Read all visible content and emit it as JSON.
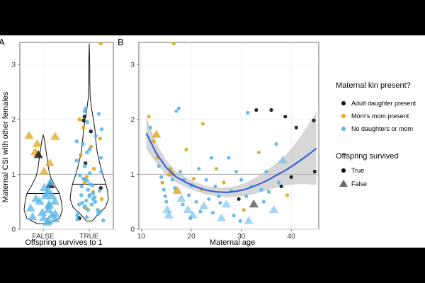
{
  "colors": {
    "adult_daughter": "#111111",
    "moms_mom": "#E0A419",
    "no_daughters": "#56B4E9",
    "false_marker": "#555555",
    "smooth_line": "#3A63D6",
    "ribbon": "#BDBDBD",
    "refline": "#AAAAAA"
  },
  "chart_data": [
    {
      "type": "violin",
      "panel_label": "A",
      "xlabel": "Offspring survives to 1",
      "ylabel": "Maternal CSI with other females",
      "categories": [
        "FALSE",
        "TRUE"
      ],
      "ylim": [
        0,
        3.4
      ],
      "yticks": [
        0,
        1,
        2,
        3
      ],
      "reference_line": 1,
      "grid": true,
      "points": {
        "FALSE": [
          {
            "y": 1.7,
            "g": "m"
          },
          {
            "y": 1.68,
            "g": "m"
          },
          {
            "y": 1.55,
            "g": "m"
          },
          {
            "y": 1.4,
            "g": "m"
          },
          {
            "y": 1.2,
            "g": "m"
          },
          {
            "y": 1.05,
            "g": "m"
          },
          {
            "y": 1.35,
            "g": "a"
          },
          {
            "y": 0.8,
            "g": "a"
          },
          {
            "y": 0.85,
            "g": "n"
          },
          {
            "y": 0.75,
            "g": "n"
          },
          {
            "y": 0.7,
            "g": "n"
          },
          {
            "y": 0.65,
            "g": "n"
          },
          {
            "y": 0.6,
            "g": "n"
          },
          {
            "y": 0.55,
            "g": "n"
          },
          {
            "y": 0.5,
            "g": "n"
          },
          {
            "y": 0.45,
            "g": "n"
          },
          {
            "y": 0.42,
            "g": "n"
          },
          {
            "y": 0.38,
            "g": "n"
          },
          {
            "y": 0.35,
            "g": "n"
          },
          {
            "y": 0.3,
            "g": "n"
          },
          {
            "y": 0.28,
            "g": "n"
          },
          {
            "y": 0.25,
            "g": "n"
          },
          {
            "y": 0.22,
            "g": "n"
          },
          {
            "y": 0.2,
            "g": "n"
          },
          {
            "y": 0.18,
            "g": "n"
          },
          {
            "y": 0.15,
            "g": "n"
          },
          {
            "y": 0.12,
            "g": "n"
          },
          {
            "y": 0.6,
            "g": "n"
          },
          {
            "y": 0.5,
            "g": "n"
          }
        ],
        "TRUE": [
          {
            "y": 3.38,
            "g": "m"
          },
          {
            "y": 2.2,
            "g": "n"
          },
          {
            "y": 2.15,
            "g": "n"
          },
          {
            "y": 2.1,
            "g": "n"
          },
          {
            "y": 2.05,
            "g": "a"
          },
          {
            "y": 2.0,
            "g": "m"
          },
          {
            "y": 1.98,
            "g": "a"
          },
          {
            "y": 1.95,
            "g": "n"
          },
          {
            "y": 1.85,
            "g": "m"
          },
          {
            "y": 1.82,
            "g": "n"
          },
          {
            "y": 1.78,
            "g": "a"
          },
          {
            "y": 1.7,
            "g": "n"
          },
          {
            "y": 1.65,
            "g": "m"
          },
          {
            "y": 1.6,
            "g": "n"
          },
          {
            "y": 1.55,
            "g": "n"
          },
          {
            "y": 1.5,
            "g": "m"
          },
          {
            "y": 1.45,
            "g": "n"
          },
          {
            "y": 1.4,
            "g": "n"
          },
          {
            "y": 1.35,
            "g": "m"
          },
          {
            "y": 1.3,
            "g": "n"
          },
          {
            "y": 1.25,
            "g": "n"
          },
          {
            "y": 1.2,
            "g": "a"
          },
          {
            "y": 1.15,
            "g": "n"
          },
          {
            "y": 1.1,
            "g": "m"
          },
          {
            "y": 1.05,
            "g": "n"
          },
          {
            "y": 1.02,
            "g": "n"
          },
          {
            "y": 0.98,
            "g": "n"
          },
          {
            "y": 0.95,
            "g": "m"
          },
          {
            "y": 0.92,
            "g": "n"
          },
          {
            "y": 0.9,
            "g": "n"
          },
          {
            "y": 0.88,
            "g": "n"
          },
          {
            "y": 0.85,
            "g": "m"
          },
          {
            "y": 0.82,
            "g": "n"
          },
          {
            "y": 0.8,
            "g": "n"
          },
          {
            "y": 0.78,
            "g": "n"
          },
          {
            "y": 0.75,
            "g": "a"
          },
          {
            "y": 0.72,
            "g": "n"
          },
          {
            "y": 0.7,
            "g": "n"
          },
          {
            "y": 0.68,
            "g": "m"
          },
          {
            "y": 0.65,
            "g": "n"
          },
          {
            "y": 0.62,
            "g": "n"
          },
          {
            "y": 0.6,
            "g": "n"
          },
          {
            "y": 0.58,
            "g": "n"
          },
          {
            "y": 0.55,
            "g": "m"
          },
          {
            "y": 0.52,
            "g": "n"
          },
          {
            "y": 0.5,
            "g": "n"
          },
          {
            "y": 0.48,
            "g": "n"
          },
          {
            "y": 0.45,
            "g": "n"
          },
          {
            "y": 0.42,
            "g": "n"
          },
          {
            "y": 0.4,
            "g": "n"
          },
          {
            "y": 0.38,
            "g": "m"
          },
          {
            "y": 0.35,
            "g": "n"
          },
          {
            "y": 0.32,
            "g": "n"
          },
          {
            "y": 0.3,
            "g": "n"
          },
          {
            "y": 0.28,
            "g": "n"
          },
          {
            "y": 0.25,
            "g": "n"
          },
          {
            "y": 0.22,
            "g": "n"
          },
          {
            "y": 0.2,
            "g": "a"
          },
          {
            "y": 0.18,
            "g": "n"
          },
          {
            "y": 0.16,
            "g": "n"
          },
          {
            "y": 0.62,
            "g": "n"
          },
          {
            "y": 0.55,
            "g": "n"
          },
          {
            "y": 0.45,
            "g": "n"
          },
          {
            "y": 0.35,
            "g": "n"
          }
        ]
      },
      "violin_density": {
        "FALSE": [
          [
            0.1,
            0.3
          ],
          [
            0.2,
            0.85
          ],
          [
            0.35,
            1.0
          ],
          [
            0.5,
            0.95
          ],
          [
            0.65,
            0.85
          ],
          [
            0.8,
            0.6
          ],
          [
            0.95,
            0.38
          ],
          [
            1.1,
            0.28
          ],
          [
            1.3,
            0.2
          ],
          [
            1.5,
            0.12
          ],
          [
            1.65,
            0.05
          ],
          [
            1.72,
            0
          ]
        ],
        "TRUE": [
          [
            0.15,
            0.15
          ],
          [
            0.25,
            0.4
          ],
          [
            0.4,
            0.85
          ],
          [
            0.55,
            1.0
          ],
          [
            0.7,
            0.95
          ],
          [
            0.85,
            0.85
          ],
          [
            1.0,
            0.7
          ],
          [
            1.2,
            0.55
          ],
          [
            1.4,
            0.42
          ],
          [
            1.6,
            0.35
          ],
          [
            1.8,
            0.3
          ],
          [
            2.0,
            0.22
          ],
          [
            2.2,
            0.12
          ],
          [
            2.4,
            0.05
          ],
          [
            2.7,
            0.03
          ],
          [
            3.0,
            0.025
          ],
          [
            3.38,
            0
          ]
        ]
      },
      "medians": {
        "FALSE": 0.65,
        "TRUE": 0.82
      }
    },
    {
      "type": "scatter",
      "panel_label": "B",
      "xlabel": "Maternal age",
      "xlim": [
        9.5,
        45.5
      ],
      "ylim": [
        0,
        3.4
      ],
      "xticks": [
        10,
        20,
        30,
        40
      ],
      "yticks": [
        0,
        1,
        2,
        3
      ],
      "reference_line": 1,
      "grid": true,
      "points": [
        {
          "x": 11.5,
          "y": 2.05,
          "g": "m",
          "s": "T"
        },
        {
          "x": 11.8,
          "y": 1.85,
          "g": "n",
          "s": "T"
        },
        {
          "x": 12.5,
          "y": 1.6,
          "g": "m",
          "s": "T"
        },
        {
          "x": 13,
          "y": 1.72,
          "g": "m",
          "s": "F"
        },
        {
          "x": 13.2,
          "y": 1.3,
          "g": "m",
          "s": "T"
        },
        {
          "x": 13.5,
          "y": 1.15,
          "g": "n",
          "s": "T"
        },
        {
          "x": 14,
          "y": 0.95,
          "g": "n",
          "s": "T"
        },
        {
          "x": 14.2,
          "y": 0.85,
          "g": "m",
          "s": "T"
        },
        {
          "x": 14.5,
          "y": 0.72,
          "g": "n",
          "s": "T"
        },
        {
          "x": 14.8,
          "y": 0.6,
          "g": "n",
          "s": "T"
        },
        {
          "x": 15,
          "y": 0.5,
          "g": "n",
          "s": "T"
        },
        {
          "x": 15.2,
          "y": 0.35,
          "g": "n",
          "s": "F"
        },
        {
          "x": 15.5,
          "y": 0.25,
          "g": "n",
          "s": "F"
        },
        {
          "x": 15.8,
          "y": 1.1,
          "g": "m",
          "s": "T"
        },
        {
          "x": 16,
          "y": 1.02,
          "g": "m",
          "s": "F"
        },
        {
          "x": 16.2,
          "y": 0.9,
          "g": "n",
          "s": "T"
        },
        {
          "x": 16.5,
          "y": 3.38,
          "g": "m",
          "s": "T"
        },
        {
          "x": 16.7,
          "y": 0.75,
          "g": "n",
          "s": "T"
        },
        {
          "x": 17,
          "y": 2.15,
          "g": "n",
          "s": "T"
        },
        {
          "x": 17.2,
          "y": 0.7,
          "g": "m",
          "s": "F"
        },
        {
          "x": 17.5,
          "y": 2.2,
          "g": "n",
          "s": "T"
        },
        {
          "x": 17.8,
          "y": 1.05,
          "g": "n",
          "s": "T"
        },
        {
          "x": 18,
          "y": 0.55,
          "g": "n",
          "s": "F"
        },
        {
          "x": 18.3,
          "y": 0.45,
          "g": "n",
          "s": "T"
        },
        {
          "x": 18.5,
          "y": 0.9,
          "g": "n",
          "s": "T"
        },
        {
          "x": 19,
          "y": 1.45,
          "g": "m",
          "s": "T"
        },
        {
          "x": 19.3,
          "y": 0.35,
          "g": "n",
          "s": "F"
        },
        {
          "x": 19.5,
          "y": 0.62,
          "g": "n",
          "s": "T"
        },
        {
          "x": 20,
          "y": 0.8,
          "g": "n",
          "s": "T"
        },
        {
          "x": 20.3,
          "y": 0.25,
          "g": "n",
          "s": "F"
        },
        {
          "x": 20.5,
          "y": 0.92,
          "g": "m",
          "s": "T"
        },
        {
          "x": 21,
          "y": 0.5,
          "g": "n",
          "s": "T"
        },
        {
          "x": 21.5,
          "y": 1.1,
          "g": "n",
          "s": "T"
        },
        {
          "x": 22,
          "y": 0.72,
          "g": "m",
          "s": "T"
        },
        {
          "x": 22.3,
          "y": 1.92,
          "g": "m",
          "s": "T"
        },
        {
          "x": 22.5,
          "y": 0.42,
          "g": "n",
          "s": "F"
        },
        {
          "x": 23,
          "y": 0.9,
          "g": "n",
          "s": "T"
        },
        {
          "x": 23.5,
          "y": 0.55,
          "g": "n",
          "s": "T"
        },
        {
          "x": 24,
          "y": 1.3,
          "g": "n",
          "s": "T"
        },
        {
          "x": 24.3,
          "y": 0.3,
          "g": "n",
          "s": "T"
        },
        {
          "x": 24.8,
          "y": 0.78,
          "g": "n",
          "s": "T"
        },
        {
          "x": 25,
          "y": 1.1,
          "g": "m",
          "s": "T"
        },
        {
          "x": 25.5,
          "y": 0.6,
          "g": "n",
          "s": "T"
        },
        {
          "x": 26,
          "y": 0.2,
          "g": "n",
          "s": "F"
        },
        {
          "x": 26.5,
          "y": 0.85,
          "g": "m",
          "s": "T"
        },
        {
          "x": 27,
          "y": 0.45,
          "g": "n",
          "s": "F"
        },
        {
          "x": 27.5,
          "y": 1.3,
          "g": "n",
          "s": "T"
        },
        {
          "x": 28,
          "y": 0.7,
          "g": "n",
          "s": "T"
        },
        {
          "x": 28.5,
          "y": 0.25,
          "g": "n",
          "s": "T"
        },
        {
          "x": 29,
          "y": 1.05,
          "g": "n",
          "s": "T"
        },
        {
          "x": 29.5,
          "y": 0.55,
          "g": "a",
          "s": "T"
        },
        {
          "x": 30,
          "y": 0.9,
          "g": "n",
          "s": "T"
        },
        {
          "x": 30.5,
          "y": 0.35,
          "g": "m",
          "s": "T"
        },
        {
          "x": 31,
          "y": 0.6,
          "g": "n",
          "s": "T"
        },
        {
          "x": 31.3,
          "y": 2.12,
          "g": "n",
          "s": "T"
        },
        {
          "x": 31.5,
          "y": 0.15,
          "g": "n",
          "s": "F"
        },
        {
          "x": 32,
          "y": 0.78,
          "g": "n",
          "s": "T"
        },
        {
          "x": 32.5,
          "y": 0.45,
          "g": "a",
          "s": "F"
        },
        {
          "x": 33,
          "y": 2.17,
          "g": "a",
          "s": "T"
        },
        {
          "x": 33.5,
          "y": 1.4,
          "g": "m",
          "s": "T"
        },
        {
          "x": 34,
          "y": 0.72,
          "g": "n",
          "s": "T"
        },
        {
          "x": 34.5,
          "y": 0.5,
          "g": "n",
          "s": "T"
        },
        {
          "x": 35,
          "y": 1.05,
          "g": "n",
          "s": "T"
        },
        {
          "x": 35.5,
          "y": 0.68,
          "g": "n",
          "s": "T"
        },
        {
          "x": 36,
          "y": 2.17,
          "g": "a",
          "s": "T"
        },
        {
          "x": 36.5,
          "y": 0.35,
          "g": "n",
          "s": "F"
        },
        {
          "x": 37,
          "y": 1.55,
          "g": "n",
          "s": "T"
        },
        {
          "x": 37.5,
          "y": 0.85,
          "g": "n",
          "s": "T"
        },
        {
          "x": 38,
          "y": 0.78,
          "g": "a",
          "s": "T"
        },
        {
          "x": 38.3,
          "y": 1.25,
          "g": "n",
          "s": "F"
        },
        {
          "x": 38.8,
          "y": 2.05,
          "g": "a",
          "s": "T"
        },
        {
          "x": 39.2,
          "y": 0.62,
          "g": "m",
          "s": "T"
        },
        {
          "x": 40,
          "y": 0.95,
          "g": "a",
          "s": "T"
        },
        {
          "x": 41,
          "y": 1.85,
          "g": "a",
          "s": "T"
        },
        {
          "x": 44.5,
          "y": 1.98,
          "g": "a",
          "s": "T"
        },
        {
          "x": 44.7,
          "y": 1.05,
          "g": "a",
          "s": "T"
        },
        {
          "x": 19.8,
          "y": 0.2,
          "g": "n",
          "s": "T"
        },
        {
          "x": 29.8,
          "y": 0.15,
          "g": "n",
          "s": "T"
        },
        {
          "x": 25.8,
          "y": 0.48,
          "g": "n",
          "s": "T"
        },
        {
          "x": 21.8,
          "y": 0.32,
          "g": "n",
          "s": "T"
        }
      ],
      "smooth": {
        "x": [
          11,
          13,
          15,
          17,
          19,
          21,
          23,
          25,
          27,
          29,
          31,
          33,
          35,
          37,
          39,
          41,
          43,
          45
        ],
        "fit": [
          1.75,
          1.38,
          1.12,
          0.95,
          0.85,
          0.77,
          0.71,
          0.68,
          0.67,
          0.69,
          0.73,
          0.8,
          0.88,
          0.98,
          1.08,
          1.2,
          1.33,
          1.47
        ],
        "lower": [
          1.45,
          1.2,
          0.98,
          0.85,
          0.76,
          0.69,
          0.63,
          0.6,
          0.58,
          0.59,
          0.61,
          0.65,
          0.7,
          0.76,
          0.8,
          0.82,
          0.82,
          0.8
        ],
        "upper": [
          2.05,
          1.56,
          1.26,
          1.05,
          0.94,
          0.85,
          0.79,
          0.76,
          0.76,
          0.79,
          0.85,
          0.95,
          1.06,
          1.2,
          1.36,
          1.58,
          1.84,
          2.14
        ]
      },
      "legend": {
        "kin_title": "Maternal kin present?",
        "kin_items": [
          {
            "key": "a",
            "label": "Adult daughter present"
          },
          {
            "key": "m",
            "label": "Mom's mom present"
          },
          {
            "key": "n",
            "label": "No daughters or mom"
          }
        ],
        "surv_title": "Offspring survived",
        "surv_items": [
          {
            "key": "T",
            "label": "True"
          },
          {
            "key": "F",
            "label": "False"
          }
        ]
      }
    }
  ]
}
